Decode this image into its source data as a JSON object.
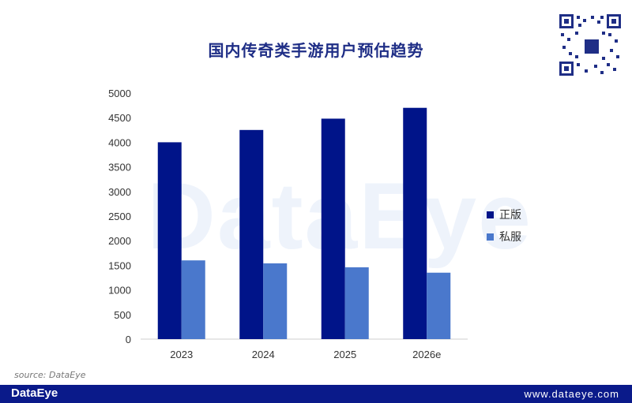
{
  "chart_data": {
    "type": "bar",
    "title": "国内传奇类手游用户预估趋势",
    "categories": [
      "2023",
      "2024",
      "2025",
      "2026e"
    ],
    "series": [
      {
        "name": "正版",
        "values": [
          4000,
          4250,
          4480,
          4700
        ],
        "color": "#001489"
      },
      {
        "name": "私服",
        "values": [
          1600,
          1540,
          1460,
          1350
        ],
        "color": "#4a78cc"
      }
    ],
    "yticks": [
      0,
      500,
      1000,
      1500,
      2000,
      2500,
      3000,
      3500,
      4000,
      4500,
      5000
    ],
    "ylim": [
      0,
      5000
    ],
    "legend_position": "right",
    "grid": false
  },
  "watermark": "DataEye",
  "source": "source:  DataEye",
  "footer": {
    "logo": "DataEye",
    "url": "www.dataeye.com",
    "color": "#0a1a8a"
  },
  "qr": {
    "icon": "qr-code-icon"
  }
}
